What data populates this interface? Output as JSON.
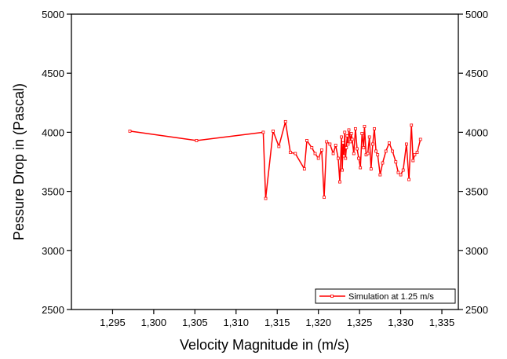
{
  "chart_data": {
    "type": "line",
    "xlabel": "Velocity Magnitude in (m/s)",
    "ylabel": "Pessure Drop in (Pascal)",
    "xlim": [
      1.29,
      1.337
    ],
    "ylim": [
      2500,
      5000
    ],
    "x_ticks": [
      1.295,
      1.3,
      1.305,
      1.31,
      1.315,
      1.32,
      1.325,
      1.33,
      1.335
    ],
    "x_tick_labels": [
      "1,295",
      "1,300",
      "1,305",
      "1,310",
      "1,315",
      "1,320",
      "1,325",
      "1,330",
      "1,335"
    ],
    "y_ticks": [
      2500,
      3000,
      3500,
      4000,
      4500,
      5000
    ],
    "y_tick_labels": [
      "2500",
      "3000",
      "3500",
      "4000",
      "4500",
      "5000"
    ],
    "y_ticks_right": true,
    "grid": false,
    "legend_position": "bottom-right",
    "color": "#ff0000",
    "series": [
      {
        "name": "Simulation at 1.25 m/s",
        "marker": "open-square",
        "x": [
          1.2971,
          1.3052,
          1.3133,
          1.3136,
          1.3145,
          1.3152,
          1.316,
          1.3166,
          1.3172,
          1.3183,
          1.3186,
          1.3192,
          1.3196,
          1.32,
          1.3204,
          1.3207,
          1.321,
          1.3214,
          1.3218,
          1.3221,
          1.3224,
          1.3226,
          1.3228,
          1.3229,
          1.323,
          1.3231,
          1.3232,
          1.3233,
          1.3234,
          1.3235,
          1.3236,
          1.3237,
          1.3239,
          1.324,
          1.3241,
          1.3243,
          1.3245,
          1.3247,
          1.3249,
          1.3251,
          1.3253,
          1.3255,
          1.3256,
          1.3258,
          1.326,
          1.3262,
          1.3264,
          1.3266,
          1.3268,
          1.327,
          1.3272,
          1.3275,
          1.3278,
          1.3282,
          1.3286,
          1.329,
          1.3294,
          1.3297,
          1.33,
          1.3303,
          1.3307,
          1.331,
          1.3313,
          1.3315,
          1.3317,
          1.332,
          1.3324
        ],
        "y": [
          4010,
          3930,
          4000,
          3440,
          4010,
          3880,
          4090,
          3830,
          3820,
          3690,
          3930,
          3870,
          3820,
          3780,
          3850,
          3450,
          3920,
          3900,
          3820,
          3890,
          3780,
          3580,
          3960,
          3680,
          3910,
          3800,
          4000,
          3780,
          3870,
          3970,
          3900,
          4020,
          3920,
          3990,
          3940,
          3820,
          4030,
          3860,
          3780,
          3700,
          3990,
          3870,
          4050,
          3810,
          3820,
          3960,
          3690,
          3900,
          4030,
          3840,
          3810,
          3640,
          3740,
          3840,
          3910,
          3840,
          3750,
          3660,
          3640,
          3680,
          3900,
          3600,
          4060,
          3760,
          3810,
          3830,
          3940
        ]
      }
    ]
  }
}
